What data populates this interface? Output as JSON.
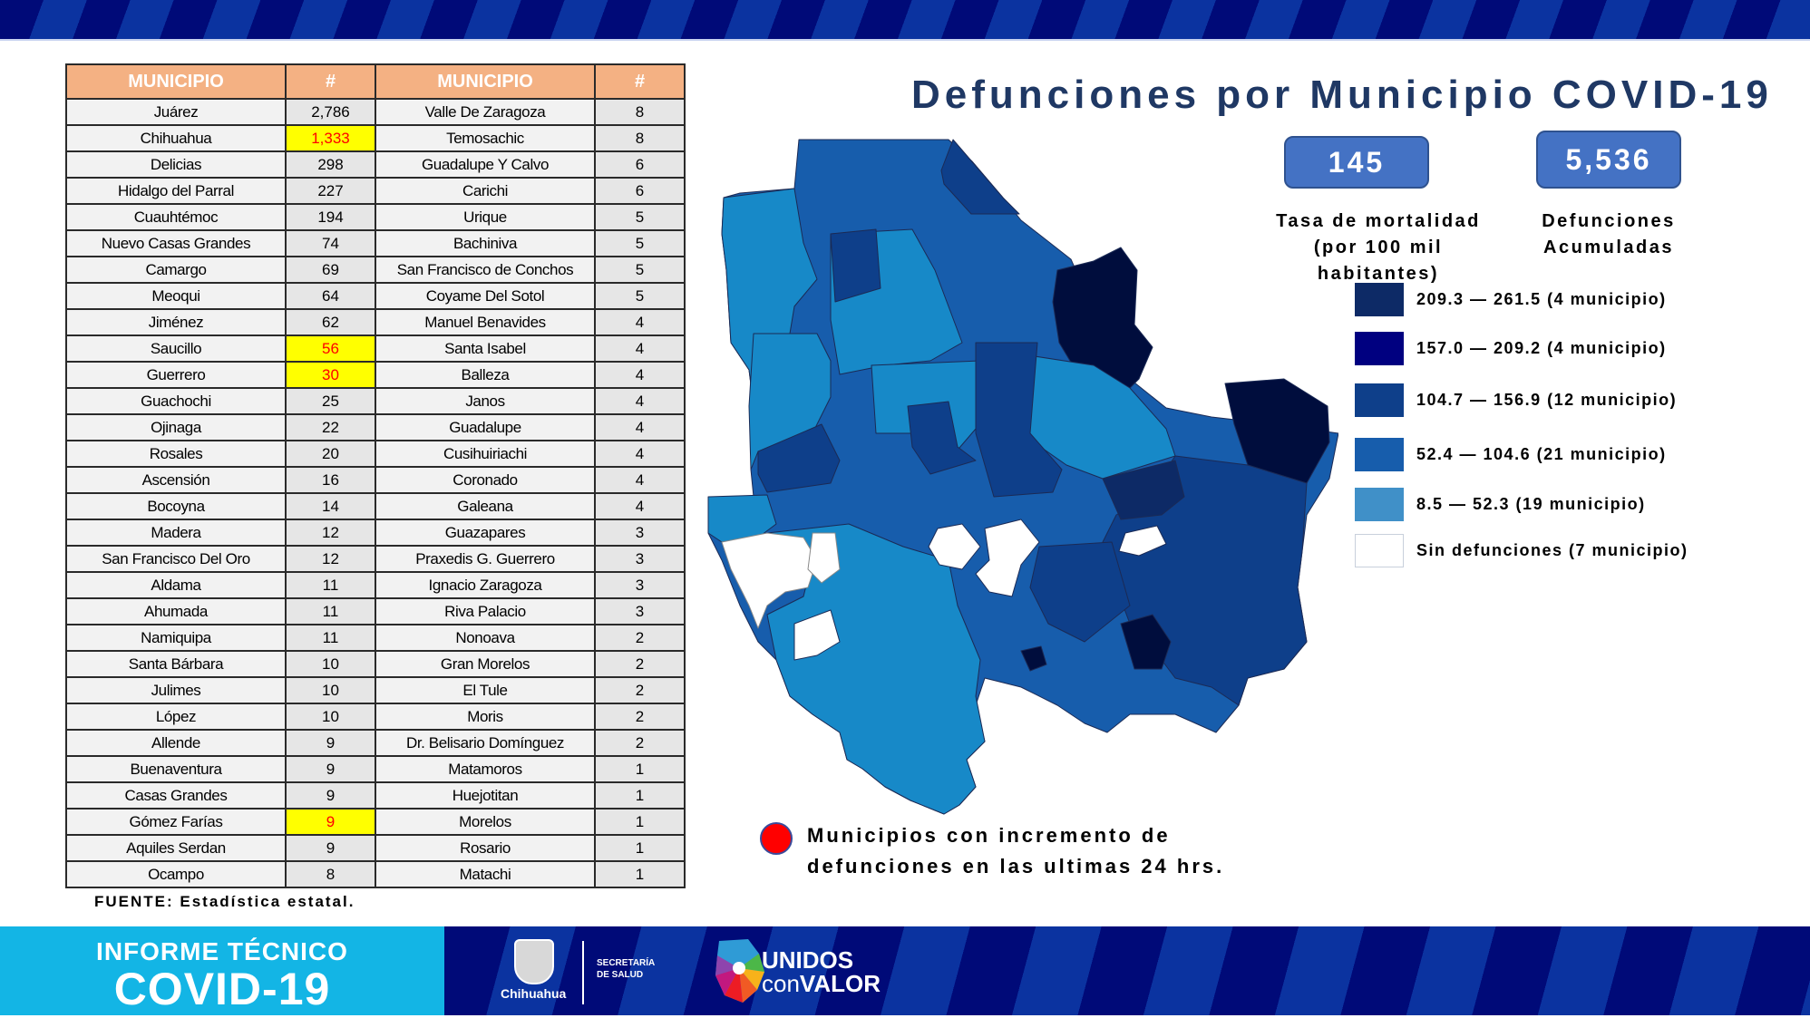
{
  "header": {
    "title": "Defunciones por Municipio COVID-19"
  },
  "table": {
    "headers": [
      "MUNICIPIO",
      "#",
      "MUNICIPIO",
      "#"
    ],
    "rows": [
      {
        "m1": "Juárez",
        "n1": "2,786",
        "h1": false,
        "m2": "Valle De Zaragoza",
        "n2": "8"
      },
      {
        "m1": "Chihuahua",
        "n1": "1,333",
        "h1": true,
        "m2": "Temosachic",
        "n2": "8"
      },
      {
        "m1": "Delicias",
        "n1": "298",
        "h1": false,
        "m2": "Guadalupe Y Calvo",
        "n2": "6"
      },
      {
        "m1": "Hidalgo del Parral",
        "n1": "227",
        "h1": false,
        "m2": "Carichi",
        "n2": "6"
      },
      {
        "m1": "Cuauhtémoc",
        "n1": "194",
        "h1": false,
        "m2": "Urique",
        "n2": "5"
      },
      {
        "m1": "Nuevo Casas Grandes",
        "n1": "74",
        "h1": false,
        "m2": "Bachiniva",
        "n2": "5"
      },
      {
        "m1": "Camargo",
        "n1": "69",
        "h1": false,
        "m2": "San Francisco de Conchos",
        "n2": "5"
      },
      {
        "m1": "Meoqui",
        "n1": "64",
        "h1": false,
        "m2": "Coyame Del Sotol",
        "n2": "5"
      },
      {
        "m1": "Jiménez",
        "n1": "62",
        "h1": false,
        "m2": "Manuel Benavides",
        "n2": "4"
      },
      {
        "m1": "Saucillo",
        "n1": "56",
        "h1": true,
        "m2": "Santa Isabel",
        "n2": "4"
      },
      {
        "m1": "Guerrero",
        "n1": "30",
        "h1": true,
        "m2": "Balleza",
        "n2": "4"
      },
      {
        "m1": "Guachochi",
        "n1": "25",
        "h1": false,
        "m2": "Janos",
        "n2": "4"
      },
      {
        "m1": "Ojinaga",
        "n1": "22",
        "h1": false,
        "m2": "Guadalupe",
        "n2": "4"
      },
      {
        "m1": "Rosales",
        "n1": "20",
        "h1": false,
        "m2": "Cusihuiriachi",
        "n2": "4"
      },
      {
        "m1": "Ascensión",
        "n1": "16",
        "h1": false,
        "m2": "Coronado",
        "n2": "4"
      },
      {
        "m1": "Bocoyna",
        "n1": "14",
        "h1": false,
        "m2": "Galeana",
        "n2": "4"
      },
      {
        "m1": "Madera",
        "n1": "12",
        "h1": false,
        "m2": "Guazapares",
        "n2": "3"
      },
      {
        "m1": "San Francisco Del Oro",
        "n1": "12",
        "h1": false,
        "m2": "Praxedis G. Guerrero",
        "n2": "3"
      },
      {
        "m1": "Aldama",
        "n1": "11",
        "h1": false,
        "m2": "Ignacio Zaragoza",
        "n2": "3"
      },
      {
        "m1": "Ahumada",
        "n1": "11",
        "h1": false,
        "m2": "Riva Palacio",
        "n2": "3"
      },
      {
        "m1": "Namiquipa",
        "n1": "11",
        "h1": false,
        "m2": "Nonoava",
        "n2": "2"
      },
      {
        "m1": "Santa Bárbara",
        "n1": "10",
        "h1": false,
        "m2": "Gran Morelos",
        "n2": "2"
      },
      {
        "m1": "Julimes",
        "n1": "10",
        "h1": false,
        "m2": "El Tule",
        "n2": "2"
      },
      {
        "m1": "López",
        "n1": "10",
        "h1": false,
        "m2": "Moris",
        "n2": "2"
      },
      {
        "m1": "Allende",
        "n1": "9",
        "h1": false,
        "m2": "Dr. Belisario Domínguez",
        "n2": "2"
      },
      {
        "m1": "Buenaventura",
        "n1": "9",
        "h1": false,
        "m2": "Matamoros",
        "n2": "1"
      },
      {
        "m1": "Casas Grandes",
        "n1": "9",
        "h1": false,
        "m2": "Huejotitan",
        "n2": "1"
      },
      {
        "m1": "Gómez Farías",
        "n1": "9",
        "h1": true,
        "m2": "Morelos",
        "n2": "1"
      },
      {
        "m1": "Aquiles Serdan",
        "n1": "9",
        "h1": false,
        "m2": "Rosario",
        "n2": "1"
      },
      {
        "m1": "Ocampo",
        "n1": "8",
        "h1": false,
        "m2": "Matachi",
        "n2": "1"
      }
    ],
    "source": "FUENTE: Estadística estatal."
  },
  "kpis": {
    "mortality_rate": {
      "value": "145",
      "label_line1": "Tasa de mortalidad",
      "label_line2": "(por 100 mil habitantes)"
    },
    "cumulative_deaths": {
      "value": "5,536",
      "label_line1": "Defunciones",
      "label_line2": "Acumuladas"
    }
  },
  "legend": {
    "items": [
      {
        "label": "209.3 — 261.5 (4 municipio)",
        "color": "#0d2a66"
      },
      {
        "label": "157.0 — 209.2 (4 municipio)",
        "color": "#000080"
      },
      {
        "label": "104.7 — 156.9 (12 municipio)",
        "color": "#0e3f8a"
      },
      {
        "label": "52.4 — 104.6 (21 municipio)",
        "color": "#175dac"
      },
      {
        "label": "8.5 — 52.3 (19 municipio)",
        "color": "#4090c8"
      },
      {
        "label": "Sin defunciones (7 municipio)",
        "color": "#ffffff"
      }
    ]
  },
  "note": {
    "line1": "Municipios con incremento de",
    "line2": "defunciones en las ultimas 24 hrs.",
    "dot_color": "#ff0000"
  },
  "footer": {
    "banner_line1": "INFORME TÉCNICO",
    "banner_line2": "COVID-19",
    "gov_name": "Chihuahua",
    "secretaria_line1": "SECRETARÍA",
    "secretaria_line2": "DE SALUD",
    "slogan_line1": "UNIDOS",
    "slogan_con": "con",
    "slogan_valor": "VALOR"
  },
  "colors": {
    "header_orange": "#f4b183",
    "highlight_yellow": "#ffff00",
    "highlight_text_red": "#ff0000",
    "title_navy": "#1f3864",
    "kpi_blue": "#4472c4",
    "banner_cyan": "#13b5e5"
  }
}
